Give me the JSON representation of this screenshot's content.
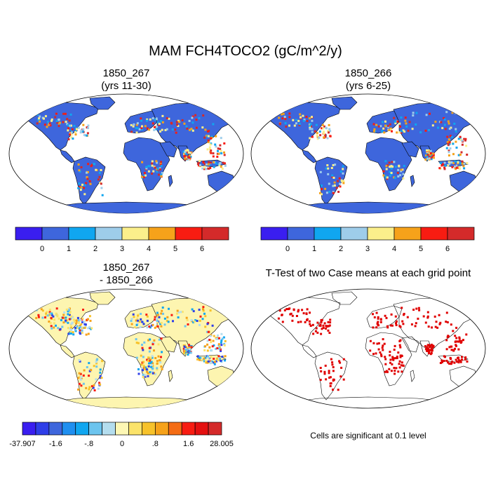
{
  "main_title": "MAM FCH4TOCO2 (gC/m^2/y)",
  "panels": [
    {
      "title_line1": "1850_267",
      "title_line2": "(yrs 11-30)"
    },
    {
      "title_line1": "1850_266",
      "title_line2": "(yrs 6-25)"
    },
    {
      "title_line1": "1850_267",
      "title_line2": "- 1850_266"
    },
    {
      "title_line1": "T-Test of two Case means at each grid point",
      "title_line2": ""
    }
  ],
  "colorbar_abs": {
    "colors": [
      "#3a1ef0",
      "#3e66dc",
      "#10a6f0",
      "#9ecdea",
      "#fbef8b",
      "#f6a21a",
      "#f81c12",
      "#d42a2a"
    ],
    "labels": [
      "0",
      "1",
      "2",
      "3",
      "4",
      "5",
      "6"
    ]
  },
  "colorbar_diff": {
    "colors": [
      "#3a1ef0",
      "#2e3ee8",
      "#3e66dc",
      "#1f8ff0",
      "#10a6f0",
      "#6cc4ee",
      "#b4ddee",
      "#fdf7b4",
      "#fbe36a",
      "#f7c22a",
      "#f6a21a",
      "#f46c14",
      "#f81c12",
      "#e41010",
      "#d42a2a"
    ],
    "labels": [
      "-37.907",
      "-1.6",
      "-.8",
      "0",
      ".8",
      "1.6",
      "28.005"
    ]
  },
  "footnote": "Cells are significant at 0.1 level",
  "colors": {
    "ocean": "#ffffff",
    "land_abs": "#3e66dc",
    "land_diff": "#fdf5b0",
    "significant": "#e00000"
  }
}
